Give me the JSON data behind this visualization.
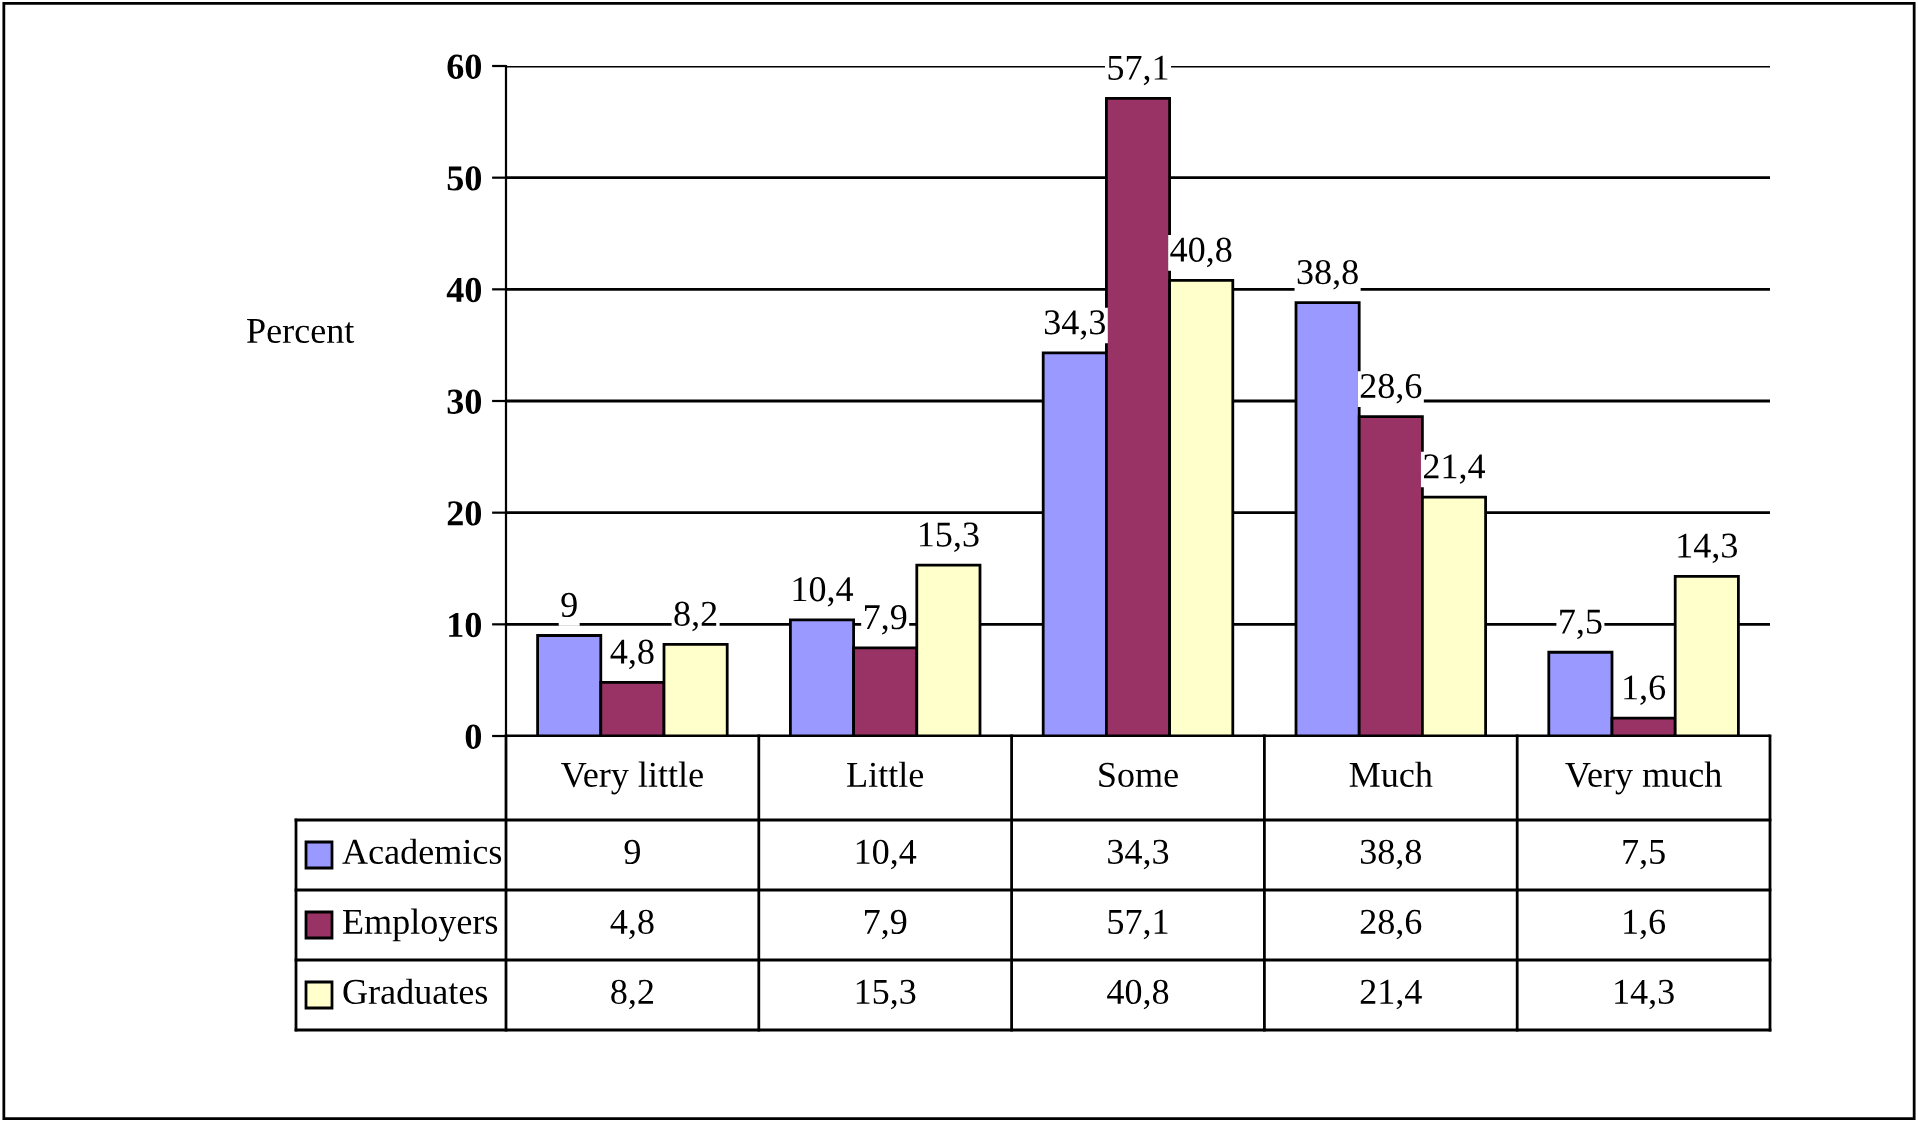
{
  "chart_data": {
    "type": "bar",
    "ylabel": "Percent",
    "categories": [
      "Very little",
      "Little",
      "Some",
      "Much",
      "Very much"
    ],
    "series": [
      {
        "name": "Academics",
        "color": "#9999ff",
        "values": [
          9,
          10.4,
          34.3,
          38.8,
          7.5
        ],
        "value_labels": [
          "9",
          "10,4",
          "34,3",
          "38,8",
          "7,5"
        ]
      },
      {
        "name": "Employers",
        "color": "#993366",
        "values": [
          4.8,
          7.9,
          57.1,
          28.6,
          1.6
        ],
        "value_labels": [
          "4,8",
          "7,9",
          "57,1",
          "28,6",
          "1,6"
        ]
      },
      {
        "name": "Graduates",
        "color": "#ffffcc",
        "values": [
          8.2,
          15.3,
          40.8,
          21.4,
          14.3
        ],
        "value_labels": [
          "8,2",
          "15,3",
          "40,8",
          "21,4",
          "14,3"
        ]
      }
    ],
    "ylim": [
      0,
      60
    ],
    "yticks": [
      0,
      10,
      20,
      30,
      40,
      50,
      60
    ],
    "grid": "y",
    "legend": "bottom"
  }
}
